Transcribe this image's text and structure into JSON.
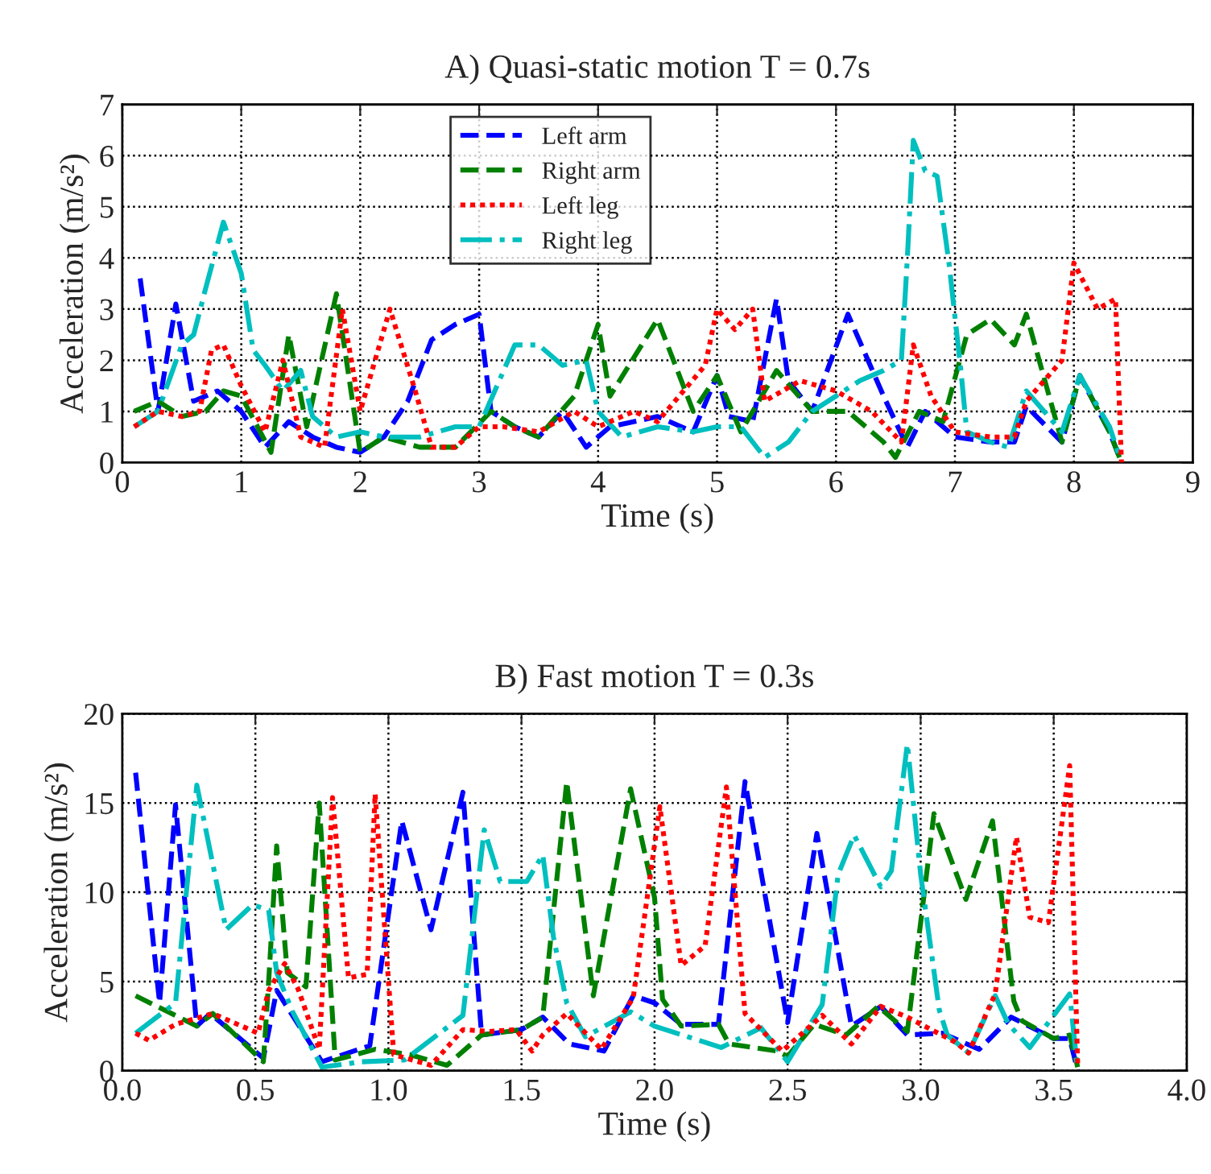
{
  "chart_data": [
    {
      "type": "line",
      "title": "A) Quasi-static motion T = 0.7s",
      "xlabel": "Time (s)",
      "ylabel": "Acceleration (m/s²)",
      "xlim": [
        0,
        9
      ],
      "ylim": [
        0,
        7
      ],
      "xticks": [
        0,
        1,
        2,
        3,
        4,
        5,
        6,
        7,
        8,
        9
      ],
      "yticks": [
        0,
        1,
        2,
        3,
        4,
        5,
        6,
        7
      ],
      "grid": true,
      "legend": "top",
      "marker": "none",
      "series": [
        {
          "name": "Left arm",
          "color": "#0000ff",
          "line_style": "dashed",
          "x": [
            0.15,
            0.3,
            0.45,
            0.6,
            0.8,
            1.0,
            1.2,
            1.4,
            1.6,
            1.8,
            2.0,
            2.2,
            2.4,
            2.6,
            2.8,
            3.0,
            3.1,
            3.3,
            3.5,
            3.7,
            3.9,
            4.1,
            4.5,
            4.8,
            5.0,
            5.1,
            5.3,
            5.5,
            5.6,
            5.8,
            6.1,
            6.4,
            6.6,
            6.75,
            7.0,
            7.3,
            7.5,
            7.6,
            7.9,
            8.05,
            8.3,
            8.4
          ],
          "values": [
            3.6,
            1.0,
            3.1,
            1.2,
            1.4,
            1.0,
            0.3,
            0.8,
            0.5,
            0.3,
            0.2,
            0.5,
            1.2,
            2.4,
            2.7,
            2.9,
            1.0,
            0.7,
            0.5,
            1.0,
            0.3,
            0.7,
            0.9,
            0.6,
            1.7,
            0.9,
            0.8,
            3.2,
            1.6,
            1.0,
            2.9,
            1.3,
            0.3,
            1.0,
            0.5,
            0.4,
            0.4,
            1.1,
            0.4,
            1.7,
            0.6,
            0.0
          ]
        },
        {
          "name": "Right arm",
          "color": "#008000",
          "line_style": "dashed",
          "x": [
            0.1,
            0.3,
            0.5,
            0.7,
            0.85,
            1.0,
            1.25,
            1.4,
            1.55,
            1.8,
            2.0,
            2.2,
            2.5,
            2.8,
            3.1,
            3.3,
            3.5,
            3.8,
            4.0,
            4.1,
            4.5,
            4.8,
            5.0,
            5.2,
            5.5,
            5.8,
            6.1,
            6.4,
            6.5,
            6.7,
            6.9,
            7.1,
            7.3,
            7.5,
            7.6,
            7.9,
            8.05,
            8.3,
            8.4
          ],
          "values": [
            1.0,
            1.2,
            0.9,
            1.0,
            1.4,
            1.3,
            0.2,
            2.5,
            0.7,
            3.3,
            0.2,
            0.5,
            0.3,
            0.3,
            1.0,
            0.7,
            0.5,
            1.3,
            2.7,
            1.3,
            2.8,
            1.0,
            1.7,
            0.6,
            1.8,
            1.0,
            1.0,
            0.4,
            0.1,
            1.0,
            0.8,
            2.5,
            2.8,
            2.3,
            2.9,
            0.4,
            1.7,
            0.6,
            0.0
          ]
        },
        {
          "name": "Left leg",
          "color": "#ff0000",
          "line_style": "dotted",
          "x": [
            0.1,
            0.3,
            0.5,
            0.65,
            0.75,
            0.85,
            1.0,
            1.2,
            1.35,
            1.5,
            1.7,
            1.85,
            2.0,
            2.25,
            2.45,
            2.6,
            2.8,
            3.0,
            3.2,
            3.5,
            3.8,
            4.0,
            4.3,
            4.5,
            4.9,
            5.0,
            5.15,
            5.3,
            5.4,
            5.7,
            6.0,
            6.3,
            6.55,
            6.65,
            6.8,
            7.0,
            7.3,
            7.5,
            7.6,
            7.9,
            8.0,
            8.2,
            8.35,
            8.4
          ],
          "values": [
            0.7,
            1.0,
            0.9,
            1.0,
            2.2,
            2.3,
            1.5,
            0.6,
            2.0,
            0.5,
            0.3,
            3.0,
            1.0,
            3.0,
            1.5,
            0.3,
            0.3,
            0.7,
            0.7,
            0.6,
            1.0,
            0.7,
            1.0,
            0.8,
            1.9,
            3.0,
            2.6,
            3.0,
            1.2,
            1.6,
            1.4,
            1.0,
            0.4,
            2.3,
            1.3,
            0.6,
            0.5,
            0.5,
            1.2,
            2.0,
            3.9,
            3.0,
            3.2,
            0.0
          ]
        },
        {
          "name": "Right leg",
          "color": "#00bfbf",
          "line_style": "dashdot",
          "x": [
            0.1,
            0.3,
            0.5,
            0.6,
            0.7,
            0.85,
            1.0,
            1.1,
            1.2,
            1.35,
            1.5,
            1.6,
            1.8,
            2.0,
            2.2,
            2.5,
            2.8,
            3.0,
            3.3,
            3.5,
            3.7,
            3.9,
            4.0,
            4.2,
            4.5,
            4.8,
            5.0,
            5.2,
            5.4,
            5.6,
            5.8,
            6.0,
            6.2,
            6.4,
            6.55,
            6.6,
            6.65,
            6.75,
            6.85,
            6.95,
            7.05,
            7.1,
            7.3,
            7.45,
            7.6,
            7.9,
            8.05,
            8.3,
            8.4
          ],
          "values": [
            0.7,
            1.0,
            2.3,
            2.5,
            3.4,
            4.7,
            3.7,
            2.2,
            1.9,
            1.4,
            1.8,
            0.9,
            0.5,
            0.6,
            0.5,
            0.5,
            0.7,
            0.7,
            2.3,
            2.3,
            1.9,
            2.0,
            1.0,
            0.5,
            0.7,
            0.6,
            0.7,
            0.7,
            0.1,
            0.4,
            1.0,
            1.3,
            1.6,
            1.8,
            2.0,
            4.0,
            6.3,
            5.7,
            5.6,
            3.9,
            1.8,
            0.6,
            0.4,
            0.3,
            1.4,
            0.6,
            1.7,
            0.7,
            0.0
          ]
        }
      ]
    },
    {
      "type": "line",
      "title": "B) Fast motion T = 0.3s",
      "xlabel": "Time (s)",
      "ylabel": "Acceleration (m/s²)",
      "xlim": [
        0,
        4
      ],
      "ylim": [
        0,
        20
      ],
      "xticks": [
        {
          "value": 0,
          "label": "0.0"
        },
        {
          "value": 0.5,
          "label": "0.5"
        },
        {
          "value": 1,
          "label": "1.0"
        },
        {
          "value": 1.5,
          "label": "1.5"
        },
        {
          "value": 2,
          "label": "2.0"
        },
        {
          "value": 2.5,
          "label": "2.5"
        },
        {
          "value": 3,
          "label": "3.0"
        },
        {
          "value": 3.5,
          "label": "3.5"
        },
        {
          "value": 4,
          "label": "4.0"
        }
      ],
      "yticks": [
        0,
        5,
        10,
        15,
        20
      ],
      "grid": true,
      "marker": "none",
      "series": [
        {
          "color": "#0000ff",
          "line_style": "dashed",
          "x": [
            0.05,
            0.14,
            0.2,
            0.28,
            0.33,
            0.53,
            0.58,
            0.75,
            0.93,
            1.05,
            1.16,
            1.28,
            1.35,
            1.5,
            1.58,
            1.68,
            1.81,
            1.92,
            2.0,
            2.1,
            2.24,
            2.34,
            2.5,
            2.61,
            2.74,
            2.85,
            2.95,
            3.08,
            3.22,
            3.34,
            3.5,
            3.56,
            3.59
          ],
          "values": [
            16.7,
            3.8,
            14.9,
            2.5,
            3.2,
            0.7,
            4.5,
            0.5,
            1.4,
            14,
            7.9,
            15.6,
            2.0,
            2.3,
            3.0,
            1.5,
            1.1,
            4.2,
            3.8,
            2.6,
            2.6,
            16.2,
            2.7,
            13.3,
            2.5,
            3.6,
            2.0,
            2.1,
            1.2,
            3.0,
            1.8,
            1.8,
            0
          ]
        },
        {
          "color": "#008000",
          "line_style": "dashed",
          "x": [
            0.05,
            0.28,
            0.34,
            0.53,
            0.55,
            0.58,
            0.62,
            0.69,
            0.74,
            0.8,
            0.95,
            1.08,
            1.22,
            1.35,
            1.5,
            1.58,
            1.67,
            1.77,
            1.91,
            2.0,
            2.03,
            2.1,
            2.24,
            2.28,
            2.46,
            2.5,
            2.6,
            2.72,
            2.84,
            2.95,
            3.05,
            3.17,
            3.27,
            3.35,
            3.38,
            3.5,
            3.56,
            3.59
          ],
          "values": [
            4.2,
            2.5,
            3.2,
            0.5,
            5.0,
            12.6,
            5.5,
            4.7,
            15,
            0.6,
            1.2,
            0.9,
            0.3,
            2.0,
            2.3,
            3.0,
            16.2,
            4.2,
            15.8,
            9.7,
            4.0,
            2.5,
            2.6,
            1.5,
            1.1,
            0.8,
            2.6,
            2.0,
            3.6,
            2.2,
            14.4,
            9.6,
            14.0,
            3.9,
            2.8,
            1.8,
            2.0,
            0.2
          ]
        },
        {
          "color": "#ff0000",
          "line_style": "dotted",
          "x": [
            0.05,
            0.1,
            0.2,
            0.34,
            0.51,
            0.55,
            0.61,
            0.66,
            0.74,
            0.79,
            0.85,
            0.92,
            0.95,
            1.02,
            1.16,
            1.28,
            1.38,
            1.48,
            1.54,
            1.58,
            1.67,
            1.8,
            1.92,
            2.02,
            2.1,
            2.19,
            2.27,
            2.34,
            2.48,
            2.63,
            2.74,
            2.85,
            2.95,
            3.13,
            3.18,
            3.28,
            3.36,
            3.41,
            3.48,
            3.56,
            3.59
          ],
          "values": [
            2.1,
            1.7,
            2.6,
            3.2,
            2.1,
            4.5,
            6.0,
            4.6,
            1.2,
            15.3,
            5.2,
            5.4,
            15.5,
            0.9,
            0.3,
            2.3,
            2.2,
            2.3,
            1.1,
            2.0,
            3.2,
            1.2,
            4.1,
            14.8,
            5.9,
            7.0,
            15.9,
            3.2,
            1.1,
            3.1,
            1.5,
            3.6,
            3.0,
            1.6,
            1.0,
            4.3,
            13.1,
            8.6,
            8.3,
            17.1,
            0.3
          ]
        },
        {
          "color": "#00bfbf",
          "line_style": "dashdot",
          "x": [
            0.05,
            0.2,
            0.28,
            0.39,
            0.49,
            0.55,
            0.58,
            0.64,
            0.75,
            0.9,
            1.06,
            1.28,
            1.36,
            1.42,
            1.52,
            1.58,
            1.62,
            1.67,
            1.74,
            1.91,
            2.0,
            2.25,
            2.4,
            2.5,
            2.63,
            2.69,
            2.75,
            2.85,
            2.89,
            2.95,
            3.0,
            3.07,
            3.1,
            3.18,
            3.28,
            3.33,
            3.41,
            3.56,
            3.59
          ],
          "values": [
            2.1,
            3.8,
            16.0,
            7.9,
            9.3,
            9.0,
            5.5,
            3.3,
            0.2,
            0.5,
            0.6,
            3.1,
            13.5,
            10.6,
            10.6,
            12.1,
            7.5,
            3.8,
            1.9,
            3.3,
            2.5,
            1.3,
            2.4,
            0.5,
            3.7,
            11.0,
            13.2,
            10.3,
            11.2,
            18.3,
            11.0,
            3.4,
            2.0,
            1.0,
            4.2,
            2.6,
            1.3,
            4.3,
            0
          ]
        }
      ]
    }
  ]
}
